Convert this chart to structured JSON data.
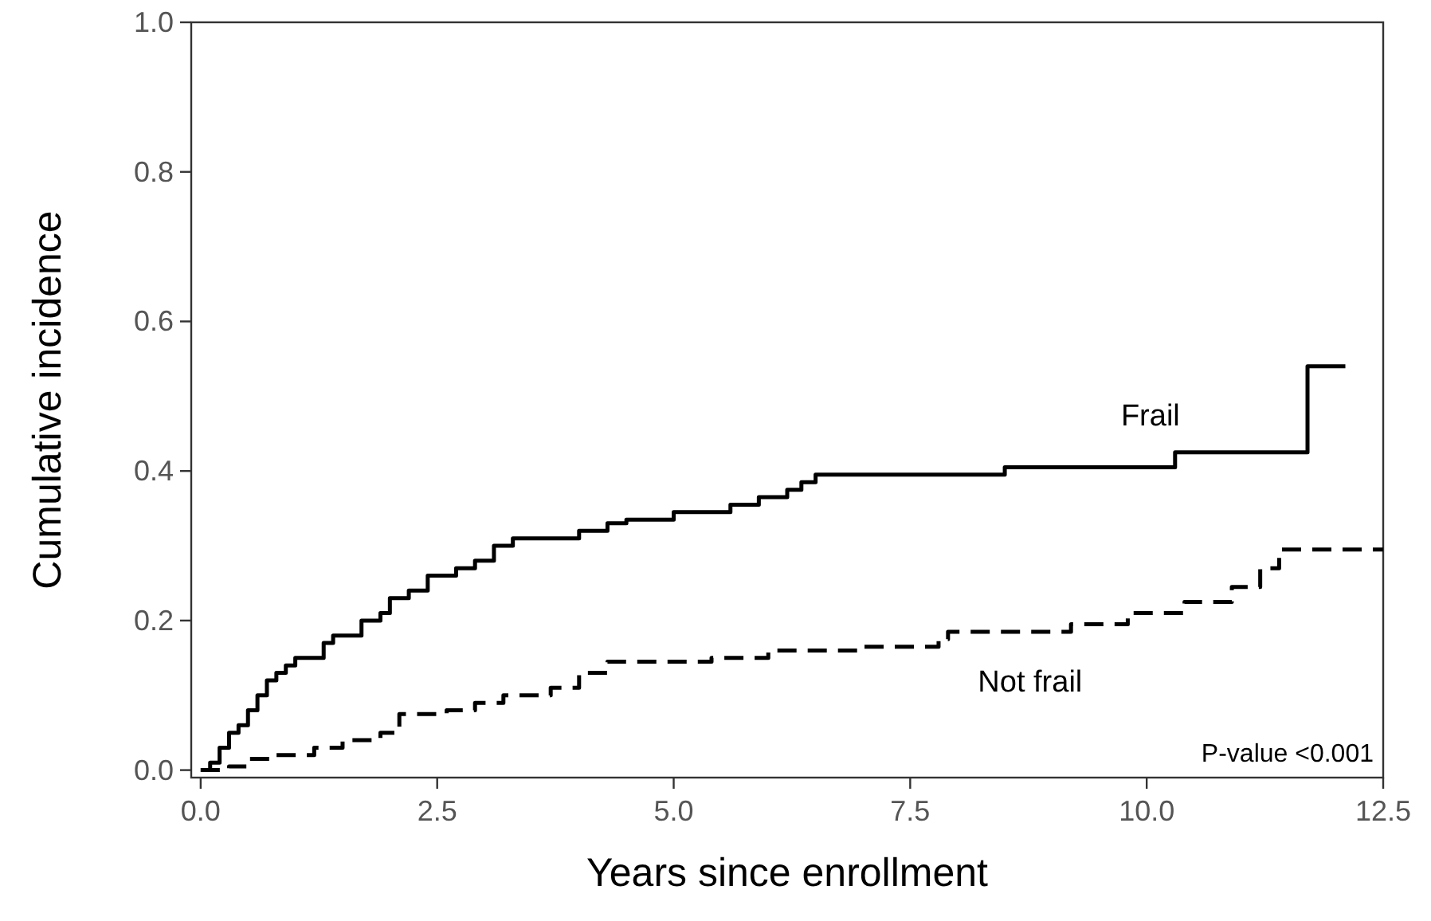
{
  "chart_data": {
    "type": "step",
    "xlabel": "Years since enrollment",
    "ylabel": "Cumulative incidence",
    "xlim": [
      -0.1,
      12.5
    ],
    "xticks": [
      {
        "value": 0,
        "label": "0.0"
      },
      2.5,
      {
        "value": 5,
        "label": "5.0"
      },
      7.5,
      {
        "value": 10,
        "label": "10.0"
      },
      12.5
    ],
    "ylim": [
      -0.01,
      1.0
    ],
    "yticks": [
      {
        "value": 0,
        "label": "0.0"
      },
      0.2,
      0.4,
      0.6,
      0.8,
      {
        "value": 1,
        "label": "1.0"
      }
    ],
    "grid": false,
    "legend": false,
    "annotations": [
      "P-value <0.001"
    ],
    "series": [
      {
        "name": "Frail",
        "color": "#000000",
        "line_style": "solid",
        "x": [
          0,
          0.1,
          0.2,
          0.3,
          0.4,
          0.5,
          0.6,
          0.7,
          0.8,
          0.9,
          1.0,
          1.3,
          1.4,
          1.7,
          1.9,
          2.0,
          2.2,
          2.4,
          2.7,
          2.9,
          3.1,
          3.3,
          4.0,
          4.3,
          4.5,
          5.0,
          5.6,
          5.9,
          6.2,
          6.35,
          6.5,
          8.5,
          10.3,
          11.7,
          12.1
        ],
        "values": [
          0,
          0.01,
          0.03,
          0.05,
          0.06,
          0.08,
          0.1,
          0.12,
          0.13,
          0.14,
          0.15,
          0.17,
          0.18,
          0.2,
          0.21,
          0.23,
          0.24,
          0.26,
          0.27,
          0.28,
          0.3,
          0.31,
          0.32,
          0.33,
          0.335,
          0.345,
          0.355,
          0.365,
          0.375,
          0.385,
          0.395,
          0.405,
          0.425,
          0.54,
          0.54
        ]
      },
      {
        "name": "Not frail",
        "color": "#000000",
        "line_style": "dashed",
        "x": [
          0,
          0.3,
          0.5,
          0.8,
          1.2,
          1.5,
          1.9,
          2.1,
          2.6,
          2.9,
          3.2,
          3.7,
          4.0,
          4.3,
          5.4,
          6.0,
          7.0,
          7.8,
          7.9,
          9.2,
          9.8,
          10.4,
          10.9,
          11.2,
          11.4,
          12.5
        ],
        "values": [
          0,
          0.005,
          0.015,
          0.02,
          0.03,
          0.04,
          0.05,
          0.075,
          0.08,
          0.09,
          0.1,
          0.11,
          0.13,
          0.145,
          0.15,
          0.16,
          0.165,
          0.175,
          0.185,
          0.195,
          0.21,
          0.225,
          0.245,
          0.27,
          0.295,
          0.295
        ]
      }
    ]
  }
}
